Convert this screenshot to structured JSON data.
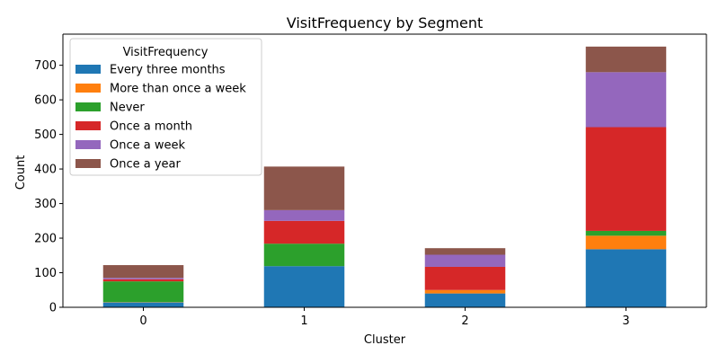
{
  "chart_data": {
    "type": "bar",
    "stacked": true,
    "title": "VisitFrequency by Segment",
    "xlabel": "Cluster",
    "ylabel": "Count",
    "categories": [
      "0",
      "1",
      "2",
      "3"
    ],
    "ylim": [
      0,
      790
    ],
    "yticks": [
      0,
      100,
      200,
      300,
      400,
      500,
      600,
      700
    ],
    "grid": false,
    "legend": {
      "title": "VisitFrequency",
      "position": "top-left"
    },
    "series": [
      {
        "name": "Every three months",
        "color": "#1f77b4",
        "values": [
          14,
          119,
          40,
          168
        ]
      },
      {
        "name": "More than once a week",
        "color": "#ff7f0e",
        "values": [
          1,
          0,
          10,
          39
        ]
      },
      {
        "name": "Never",
        "color": "#2ca02c",
        "values": [
          60,
          65,
          0,
          14
        ]
      },
      {
        "name": "Once a month",
        "color": "#d62728",
        "values": [
          6,
          66,
          67,
          300
        ]
      },
      {
        "name": "Once a week",
        "color": "#9467bd",
        "values": [
          4,
          31,
          35,
          159
        ]
      },
      {
        "name": "Once a year",
        "color": "#8c564b",
        "values": [
          37,
          126,
          19,
          74
        ]
      }
    ]
  }
}
